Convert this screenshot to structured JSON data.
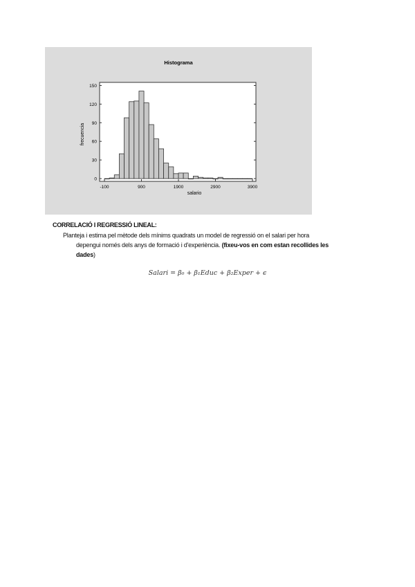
{
  "chart_data": {
    "type": "bar",
    "title": "Histograma",
    "xlabel": "salario",
    "ylabel": "frecuencia",
    "bin_start": -100,
    "bin_width": 133.33,
    "values": [
      0,
      1,
      6,
      40,
      98,
      124,
      125,
      141,
      122,
      87,
      64,
      48,
      25,
      19,
      8,
      9,
      9,
      0,
      4,
      2,
      1,
      1,
      0,
      2,
      0,
      0,
      0,
      0,
      0,
      0
    ],
    "xlim": [
      -100,
      3900
    ],
    "ylim": [
      0,
      155
    ],
    "xticks": [
      "-100",
      "900",
      "1900",
      "2900",
      "3900"
    ],
    "xtick_values": [
      -100,
      900,
      1900,
      2900,
      3900
    ],
    "yticks": [
      "0",
      "30",
      "60",
      "90",
      "120",
      "150"
    ],
    "ytick_values": [
      0,
      30,
      60,
      90,
      120,
      150
    ],
    "bar_color": "#c8c8c8",
    "background": "#dcdcdc",
    "grid": false
  },
  "section": {
    "heading": "CORRELACIÓ I REGRESSIÓ LINEAL:",
    "line1": "Planteja i estima pel mètode dels mínims quadrats un model de regressió on el salari per hora",
    "line2": "depengui només dels anys de formació i d'experiència. ",
    "line2_bold": "(fixeu-vos en com estan recollides les",
    "line3_bold": "dades",
    "line3_end": ")",
    "formula": "Salari = β₀ + β₁Educ + β₂Exper + ϵ"
  }
}
